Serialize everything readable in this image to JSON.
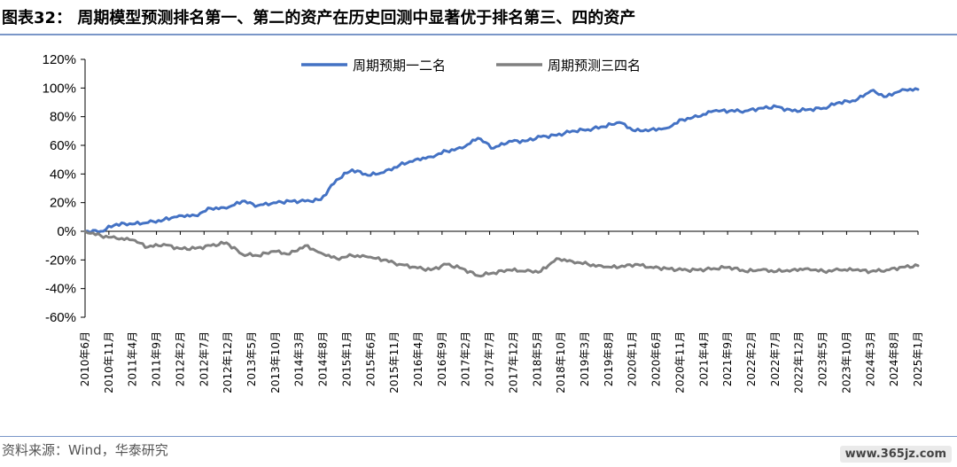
{
  "figure": {
    "title": "图表32： 周期模型预测排名第一、第二的资产在历史回测中显著优于排名第三、四的资产",
    "source": "资料来源：Wind，华泰研究",
    "watermark": "www.365jz.com"
  },
  "chart_data": {
    "type": "line",
    "title": "",
    "xlabel": "",
    "ylabel": "",
    "ylim": [
      -60,
      120
    ],
    "y_ticks": [
      "120%",
      "100%",
      "80%",
      "60%",
      "40%",
      "20%",
      "0%",
      "-20%",
      "-40%",
      "-60%"
    ],
    "grid": false,
    "legend_position": "top-center",
    "x_ticks": [
      "2010年6月",
      "2010年11月",
      "2011年4月",
      "2011年9月",
      "2012年2月",
      "2012年7月",
      "2012年12月",
      "2013年5月",
      "2013年10月",
      "2014年3月",
      "2014年8月",
      "2015年1月",
      "2015年6月",
      "2015年11月",
      "2016年4月",
      "2016年9月",
      "2017年2月",
      "2017年7月",
      "2017年12月",
      "2018年5月",
      "2018年10月",
      "2019年3月",
      "2019年8月",
      "2020年1月",
      "2020年6月",
      "2020年11月",
      "2021年4月",
      "2021年9月",
      "2022年2月",
      "2022年7月",
      "2022年12月",
      "2023年5月",
      "2023年10月",
      "2024年3月",
      "2024年8月",
      "2025年1月"
    ],
    "series": [
      {
        "name": "周期预期一二名",
        "color": "#4472c4",
        "values": [
          0,
          0,
          5,
          5,
          6,
          8,
          11,
          11,
          16,
          16,
          21,
          18,
          20,
          21,
          21,
          22,
          36,
          43,
          39,
          41,
          46,
          50,
          52,
          56,
          58,
          65,
          58,
          63,
          63,
          66,
          67,
          70,
          71,
          73,
          76,
          70,
          71,
          72,
          78,
          80,
          84,
          84,
          84,
          86,
          87,
          84,
          85,
          86,
          90,
          91,
          98,
          94,
          99,
          99
        ]
      },
      {
        "name": "周期预测三四名",
        "color": "#808080",
        "values": [
          0,
          -3,
          -5,
          -6,
          -11,
          -9,
          -12,
          -12,
          -10,
          -8,
          -16,
          -17,
          -14,
          -16,
          -10,
          -15,
          -19,
          -17,
          -18,
          -20,
          -23,
          -25,
          -27,
          -23,
          -26,
          -31,
          -29,
          -27,
          -28,
          -28,
          -19,
          -21,
          -23,
          -25,
          -25,
          -23,
          -25,
          -26,
          -27,
          -27,
          -26,
          -25,
          -28,
          -27,
          -28,
          -27,
          -26,
          -28,
          -27,
          -27,
          -28,
          -27,
          -25,
          -24
        ]
      }
    ]
  }
}
